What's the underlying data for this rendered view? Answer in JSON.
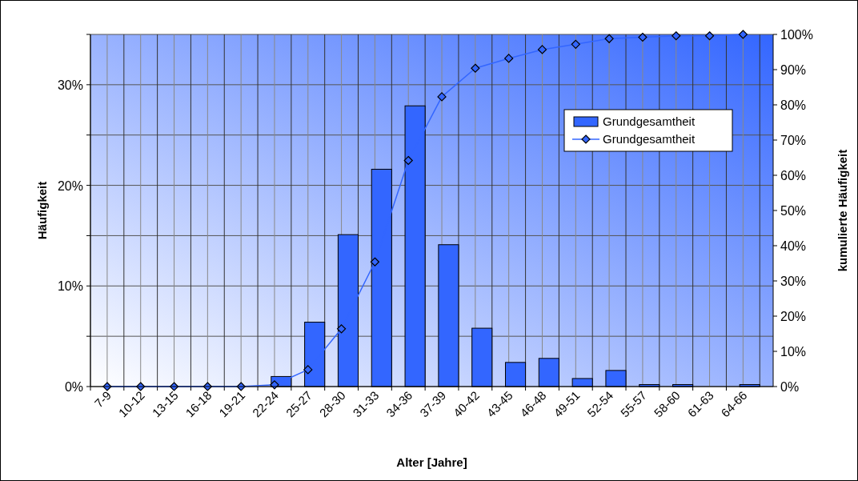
{
  "chart_data": {
    "type": "bar",
    "xlabel": "Alter [Jahre]",
    "ylabel": "Häufigkeit",
    "y2label": "kumulierte Häufigkeit",
    "categories": [
      "7-9",
      "10-12",
      "13-15",
      "16-18",
      "19-21",
      "22-24",
      "25-27",
      "28-30",
      "31-33",
      "34-36",
      "37-39",
      "40-42",
      "43-45",
      "46-48",
      "49-51",
      "52-54",
      "55-57",
      "58-60",
      "61-63",
      "64-66"
    ],
    "series": [
      {
        "name": "Grundgesamtheit",
        "color": "#3366ff",
        "values": [
          0,
          0,
          0,
          0,
          0,
          1.0,
          6.4,
          15.1,
          21.6,
          27.9,
          14.1,
          5.8,
          2.4,
          2.8,
          0.8,
          1.6,
          0.2,
          0.2,
          0,
          0.2
        ]
      },
      {
        "name": "Grundgesamtheit",
        "type": "line",
        "axis": "y2",
        "color": "#3366ff",
        "marker": "diamond",
        "values": [
          0,
          0,
          0,
          0,
          0,
          0.5,
          4.8,
          16.4,
          35.4,
          64.2,
          82.3,
          90.4,
          93.2,
          95.7,
          97.2,
          98.8,
          99.2,
          99.6,
          99.6,
          100
        ]
      }
    ],
    "ylim": [
      0,
      35
    ],
    "yticks": [
      {
        "value": 0,
        "label": "0%"
      },
      {
        "value": 5,
        "label": null
      },
      {
        "value": 10,
        "label": "10%"
      },
      {
        "value": 15,
        "label": null
      },
      {
        "value": 20,
        "label": "20%"
      },
      {
        "value": 25,
        "label": null
      },
      {
        "value": 30,
        "label": "30%"
      },
      {
        "value": 35,
        "label": null
      }
    ],
    "y2lim": [
      0,
      100
    ],
    "y2ticks": [
      {
        "value": 0,
        "label": "0%"
      },
      {
        "value": 10,
        "label": "10%"
      },
      {
        "value": 20,
        "label": "20%"
      },
      {
        "value": 30,
        "label": "30%"
      },
      {
        "value": 40,
        "label": "40%"
      },
      {
        "value": 50,
        "label": "50%"
      },
      {
        "value": 60,
        "label": "60%"
      },
      {
        "value": 70,
        "label": "70%"
      },
      {
        "value": 80,
        "label": "80%"
      },
      {
        "value": 90,
        "label": "90%"
      },
      {
        "value": 100,
        "label": "100%"
      }
    ],
    "grid": true,
    "legend": "top right"
  }
}
